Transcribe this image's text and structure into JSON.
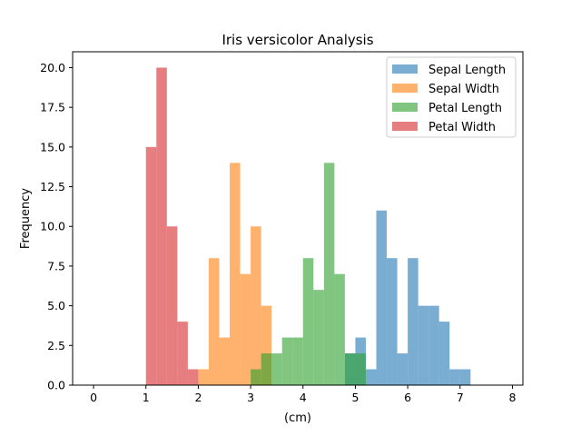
{
  "chart_data": {
    "type": "histogram",
    "title": "Iris versicolor Analysis",
    "xlabel": "(cm)",
    "ylabel": "Frequency",
    "xlim": [
      -0.4,
      8.2
    ],
    "ylim": [
      0,
      21
    ],
    "x_ticks": [
      "0",
      "1",
      "2",
      "3",
      "4",
      "5",
      "6",
      "7",
      "8"
    ],
    "x_tick_values": [
      0,
      1,
      2,
      3,
      4,
      5,
      6,
      7,
      8
    ],
    "y_ticks": [
      "0.0",
      "2.5",
      "5.0",
      "7.5",
      "10.0",
      "12.5",
      "15.0",
      "17.5",
      "20.0"
    ],
    "y_tick_values": [
      0,
      2.5,
      5,
      7.5,
      10,
      12.5,
      15,
      17.5,
      20
    ],
    "bin_width": 0.2,
    "opacity": 0.6,
    "legend_position": "top-right",
    "grid": false,
    "series": [
      {
        "name": "Sepal Length",
        "color": "#1f77b4",
        "bins": [
          [
            4.8,
            5.0,
            2
          ],
          [
            5.0,
            5.2,
            3
          ],
          [
            5.2,
            5.4,
            1
          ],
          [
            5.4,
            5.6,
            11
          ],
          [
            5.6,
            5.8,
            8
          ],
          [
            5.8,
            6.0,
            2
          ],
          [
            6.0,
            6.2,
            8
          ],
          [
            6.2,
            6.4,
            5
          ],
          [
            6.4,
            6.6,
            5
          ],
          [
            6.6,
            6.8,
            4
          ],
          [
            6.8,
            7.0,
            1
          ],
          [
            7.0,
            7.2,
            1
          ]
        ]
      },
      {
        "name": "Sepal Width",
        "color": "#ff7f0e",
        "bins": [
          [
            2.0,
            2.2,
            1
          ],
          [
            2.2,
            2.4,
            8
          ],
          [
            2.4,
            2.6,
            3
          ],
          [
            2.6,
            2.8,
            14
          ],
          [
            2.8,
            3.0,
            7
          ],
          [
            3.0,
            3.2,
            10
          ],
          [
            3.2,
            3.4,
            5
          ]
        ]
      },
      {
        "name": "Petal Length",
        "color": "#2ca02c",
        "bins": [
          [
            3.0,
            3.2,
            1
          ],
          [
            3.2,
            3.4,
            2
          ],
          [
            3.4,
            3.6,
            2
          ],
          [
            3.6,
            3.8,
            3
          ],
          [
            3.8,
            4.0,
            3
          ],
          [
            4.0,
            4.2,
            8
          ],
          [
            4.2,
            4.4,
            6
          ],
          [
            4.4,
            4.6,
            14
          ],
          [
            4.6,
            4.8,
            7
          ],
          [
            4.8,
            5.0,
            2
          ],
          [
            5.0,
            5.2,
            2
          ]
        ]
      },
      {
        "name": "Petal Width",
        "color": "#d62728",
        "bins": [
          [
            1.0,
            1.2,
            15
          ],
          [
            1.2,
            1.4,
            20
          ],
          [
            1.4,
            1.6,
            10
          ],
          [
            1.6,
            1.8,
            4
          ],
          [
            1.8,
            2.0,
            1
          ]
        ]
      }
    ]
  }
}
